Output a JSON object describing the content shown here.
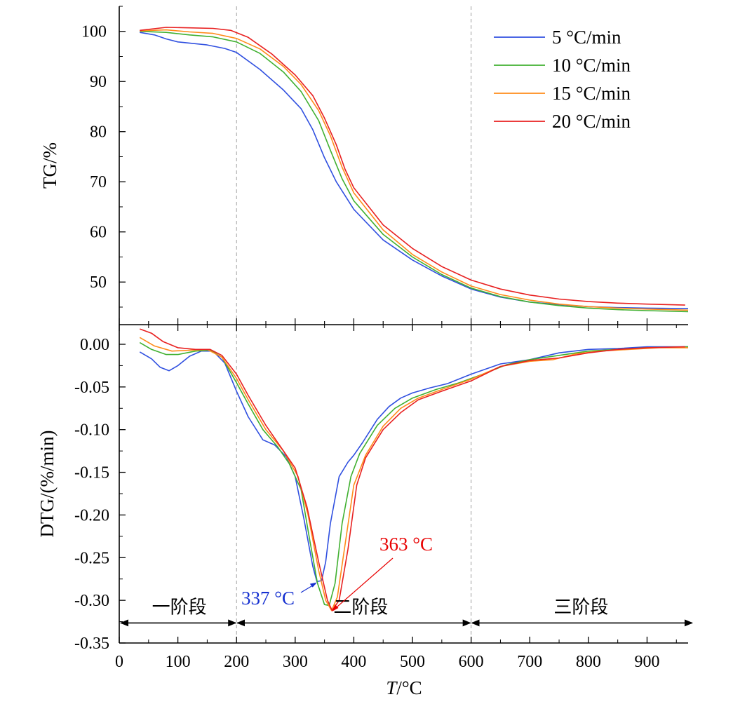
{
  "chart_data": [
    {
      "type": "line",
      "ylabel": "TG/%",
      "xlim": [
        0,
        970
      ],
      "ylim": [
        41.5,
        105
      ],
      "y_ticks": [
        "50",
        "60",
        "70",
        "80",
        "90",
        "100"
      ],
      "legend": {
        "placement": "top-right",
        "entries": [
          {
            "name": "5 °C/min",
            "color": "#3050e0"
          },
          {
            "name": "10 °C/min",
            "color": "#40b030"
          },
          {
            "name": "15 °C/min",
            "color": "#ff8c1a"
          },
          {
            "name": "20 °C/min",
            "color": "#e82020"
          }
        ]
      },
      "series": [
        {
          "name": "5 °C/min",
          "color": "#3050e0",
          "points": [
            [
              35,
              99.8
            ],
            [
              60,
              99.3
            ],
            [
              80,
              98.5
            ],
            [
              100,
              97.9
            ],
            [
              150,
              97.3
            ],
            [
              180,
              96.6
            ],
            [
              200,
              95.8
            ],
            [
              240,
              92.4
            ],
            [
              280,
              88.3
            ],
            [
              310,
              84.6
            ],
            [
              330,
              80.4
            ],
            [
              350,
              74.8
            ],
            [
              370,
              70.0
            ],
            [
              400,
              64.5
            ],
            [
              450,
              58.4
            ],
            [
              500,
              54.4
            ],
            [
              550,
              51.2
            ],
            [
              600,
              48.6
            ],
            [
              650,
              47.0
            ],
            [
              700,
              46.0
            ],
            [
              750,
              45.5
            ],
            [
              800,
              45.1
            ],
            [
              850,
              44.9
            ],
            [
              900,
              44.8
            ],
            [
              970,
              44.7
            ]
          ]
        },
        {
          "name": "10 °C/min",
          "color": "#40b030",
          "points": [
            [
              35,
              100.0
            ],
            [
              80,
              99.8
            ],
            [
              120,
              99.3
            ],
            [
              160,
              98.9
            ],
            [
              200,
              97.9
            ],
            [
              240,
              95.6
            ],
            [
              280,
              91.9
            ],
            [
              310,
              88.0
            ],
            [
              340,
              82.2
            ],
            [
              360,
              76.3
            ],
            [
              380,
              70.6
            ],
            [
              400,
              66.2
            ],
            [
              450,
              59.5
            ],
            [
              500,
              55.0
            ],
            [
              550,
              51.5
            ],
            [
              600,
              48.8
            ],
            [
              650,
              47.1
            ],
            [
              700,
              46.0
            ],
            [
              750,
              45.3
            ],
            [
              800,
              44.8
            ],
            [
              850,
              44.5
            ],
            [
              900,
              44.3
            ],
            [
              970,
              44.1
            ]
          ]
        },
        {
          "name": "15 °C/min",
          "color": "#ff8c1a",
          "points": [
            [
              35,
              100.1
            ],
            [
              80,
              100.3
            ],
            [
              120,
              99.9
            ],
            [
              160,
              99.6
            ],
            [
              200,
              98.6
            ],
            [
              240,
              96.5
            ],
            [
              280,
              93.0
            ],
            [
              310,
              89.4
            ],
            [
              340,
              84.2
            ],
            [
              360,
              79.2
            ],
            [
              380,
              72.9
            ],
            [
              400,
              67.8
            ],
            [
              450,
              60.4
            ],
            [
              500,
              55.5
            ],
            [
              550,
              52.0
            ],
            [
              600,
              49.2
            ],
            [
              650,
              47.5
            ],
            [
              700,
              46.4
            ],
            [
              750,
              45.6
            ],
            [
              800,
              45.1
            ],
            [
              850,
              44.8
            ],
            [
              900,
              44.6
            ],
            [
              970,
              44.4
            ]
          ]
        },
        {
          "name": "20 °C/min",
          "color": "#e82020",
          "points": [
            [
              35,
              100.2
            ],
            [
              80,
              100.8
            ],
            [
              120,
              100.7
            ],
            [
              160,
              100.6
            ],
            [
              190,
              100.2
            ],
            [
              220,
              98.8
            ],
            [
              260,
              95.5
            ],
            [
              300,
              91.3
            ],
            [
              330,
              87.2
            ],
            [
              350,
              82.7
            ],
            [
              370,
              77.4
            ],
            [
              385,
              72.5
            ],
            [
              400,
              68.8
            ],
            [
              450,
              61.4
            ],
            [
              500,
              56.7
            ],
            [
              550,
              53.1
            ],
            [
              600,
              50.4
            ],
            [
              650,
              48.6
            ],
            [
              700,
              47.4
            ],
            [
              750,
              46.6
            ],
            [
              800,
              46.1
            ],
            [
              850,
              45.8
            ],
            [
              900,
              45.6
            ],
            [
              965,
              45.4
            ]
          ]
        }
      ]
    },
    {
      "type": "line",
      "xlabel_italic": "T",
      "xlabel_unit": "/°C",
      "ylabel": "DTG/(%/min)",
      "xlim": [
        0,
        970
      ],
      "ylim": [
        -0.35,
        0.023
      ],
      "x_ticks": [
        "0",
        "100",
        "200",
        "300",
        "400",
        "500",
        "600",
        "700",
        "800",
        "900"
      ],
      "y_ticks": [
        "0.00",
        "-0.05",
        "-0.10",
        "-0.15",
        "-0.20",
        "-0.25",
        "-0.30",
        "-0.35"
      ],
      "series": [
        {
          "name": "5 °C/min",
          "color": "#3050e0",
          "points": [
            [
              35,
              -0.009
            ],
            [
              55,
              -0.017
            ],
            [
              70,
              -0.027
            ],
            [
              85,
              -0.031
            ],
            [
              100,
              -0.025
            ],
            [
              120,
              -0.014
            ],
            [
              140,
              -0.008
            ],
            [
              160,
              -0.008
            ],
            [
              180,
              -0.022
            ],
            [
              200,
              -0.055
            ],
            [
              220,
              -0.085
            ],
            [
              245,
              -0.112
            ],
            [
              265,
              -0.118
            ],
            [
              285,
              -0.132
            ],
            [
              300,
              -0.155
            ],
            [
              315,
              -0.205
            ],
            [
              330,
              -0.26
            ],
            [
              337,
              -0.278
            ],
            [
              345,
              -0.277
            ],
            [
              352,
              -0.255
            ],
            [
              360,
              -0.21
            ],
            [
              375,
              -0.155
            ],
            [
              390,
              -0.138
            ],
            [
              400,
              -0.13
            ],
            [
              415,
              -0.115
            ],
            [
              440,
              -0.088
            ],
            [
              460,
              -0.073
            ],
            [
              480,
              -0.063
            ],
            [
              500,
              -0.057
            ],
            [
              530,
              -0.051
            ],
            [
              560,
              -0.046
            ],
            [
              600,
              -0.035
            ],
            [
              650,
              -0.023
            ],
            [
              700,
              -0.018
            ],
            [
              750,
              -0.01
            ],
            [
              800,
              -0.006
            ],
            [
              850,
              -0.005
            ],
            [
              900,
              -0.003
            ],
            [
              970,
              -0.003
            ]
          ]
        },
        {
          "name": "10 °C/min",
          "color": "#40b030",
          "points": [
            [
              35,
              0.002
            ],
            [
              55,
              -0.006
            ],
            [
              80,
              -0.012
            ],
            [
              100,
              -0.012
            ],
            [
              130,
              -0.008
            ],
            [
              155,
              -0.007
            ],
            [
              175,
              -0.015
            ],
            [
              200,
              -0.045
            ],
            [
              220,
              -0.07
            ],
            [
              245,
              -0.1
            ],
            [
              270,
              -0.12
            ],
            [
              290,
              -0.14
            ],
            [
              310,
              -0.17
            ],
            [
              325,
              -0.23
            ],
            [
              338,
              -0.28
            ],
            [
              350,
              -0.305
            ],
            [
              358,
              -0.306
            ],
            [
              368,
              -0.28
            ],
            [
              380,
              -0.21
            ],
            [
              395,
              -0.155
            ],
            [
              410,
              -0.128
            ],
            [
              440,
              -0.095
            ],
            [
              470,
              -0.075
            ],
            [
              500,
              -0.063
            ],
            [
              540,
              -0.053
            ],
            [
              580,
              -0.045
            ],
            [
              620,
              -0.035
            ],
            [
              660,
              -0.024
            ],
            [
              700,
              -0.018
            ],
            [
              750,
              -0.013
            ],
            [
              800,
              -0.008
            ],
            [
              850,
              -0.006
            ],
            [
              900,
              -0.004
            ],
            [
              970,
              -0.003
            ]
          ]
        },
        {
          "name": "15 °C/min",
          "color": "#ff8c1a",
          "points": [
            [
              35,
              0.008
            ],
            [
              60,
              -0.002
            ],
            [
              90,
              -0.008
            ],
            [
              120,
              -0.007
            ],
            [
              150,
              -0.006
            ],
            [
              175,
              -0.015
            ],
            [
              200,
              -0.04
            ],
            [
              220,
              -0.065
            ],
            [
              250,
              -0.1
            ],
            [
              280,
              -0.125
            ],
            [
              305,
              -0.155
            ],
            [
              322,
              -0.2
            ],
            [
              340,
              -0.265
            ],
            [
              352,
              -0.3
            ],
            [
              362,
              -0.312
            ],
            [
              372,
              -0.296
            ],
            [
              385,
              -0.235
            ],
            [
              400,
              -0.165
            ],
            [
              420,
              -0.13
            ],
            [
              450,
              -0.096
            ],
            [
              480,
              -0.075
            ],
            [
              510,
              -0.063
            ],
            [
              550,
              -0.053
            ],
            [
              600,
              -0.041
            ],
            [
              650,
              -0.026
            ],
            [
              700,
              -0.02
            ],
            [
              740,
              -0.018
            ],
            [
              780,
              -0.011
            ],
            [
              820,
              -0.008
            ],
            [
              870,
              -0.006
            ],
            [
              920,
              -0.004
            ],
            [
              970,
              -0.004
            ]
          ]
        },
        {
          "name": "20 °C/min",
          "color": "#e82020",
          "points": [
            [
              35,
              0.018
            ],
            [
              55,
              0.013
            ],
            [
              75,
              0.003
            ],
            [
              100,
              -0.004
            ],
            [
              130,
              -0.006
            ],
            [
              155,
              -0.006
            ],
            [
              175,
              -0.013
            ],
            [
              200,
              -0.035
            ],
            [
              220,
              -0.06
            ],
            [
              250,
              -0.095
            ],
            [
              280,
              -0.125
            ],
            [
              300,
              -0.145
            ],
            [
              320,
              -0.19
            ],
            [
              340,
              -0.255
            ],
            [
              355,
              -0.3
            ],
            [
              363,
              -0.312
            ],
            [
              375,
              -0.3
            ],
            [
              390,
              -0.24
            ],
            [
              405,
              -0.165
            ],
            [
              420,
              -0.133
            ],
            [
              450,
              -0.1
            ],
            [
              480,
              -0.08
            ],
            [
              510,
              -0.065
            ],
            [
              550,
              -0.055
            ],
            [
              600,
              -0.043
            ],
            [
              650,
              -0.026
            ],
            [
              700,
              -0.019
            ],
            [
              750,
              -0.016
            ],
            [
              800,
              -0.01
            ],
            [
              850,
              -0.006
            ],
            [
              900,
              -0.004
            ],
            [
              965,
              -0.003
            ]
          ]
        }
      ],
      "annotations": [
        {
          "text": "337 °C",
          "color": "#1530d0",
          "point": [
            337,
            -0.279
          ]
        },
        {
          "text": "363 °C",
          "color": "#e80000",
          "point": [
            363,
            -0.313
          ]
        }
      ],
      "stages": [
        {
          "text": "一阶段"
        },
        {
          "text": "二阶段"
        },
        {
          "text": "三阶段"
        }
      ],
      "stage_boundaries": [
        200,
        600
      ]
    }
  ]
}
